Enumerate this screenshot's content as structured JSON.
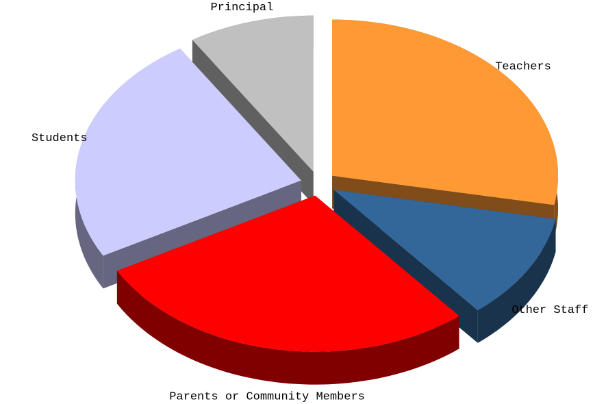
{
  "chart_data": {
    "type": "pie",
    "categories": [
      "Teachers",
      "Other Staff",
      "Parents or Community Members",
      "Students",
      "Principal"
    ],
    "values": [
      28,
      11,
      28,
      24,
      9
    ],
    "colors": [
      "#ff9933",
      "#336699",
      "#ff0000",
      "#ccccff",
      "#c0c0c0"
    ]
  }
}
